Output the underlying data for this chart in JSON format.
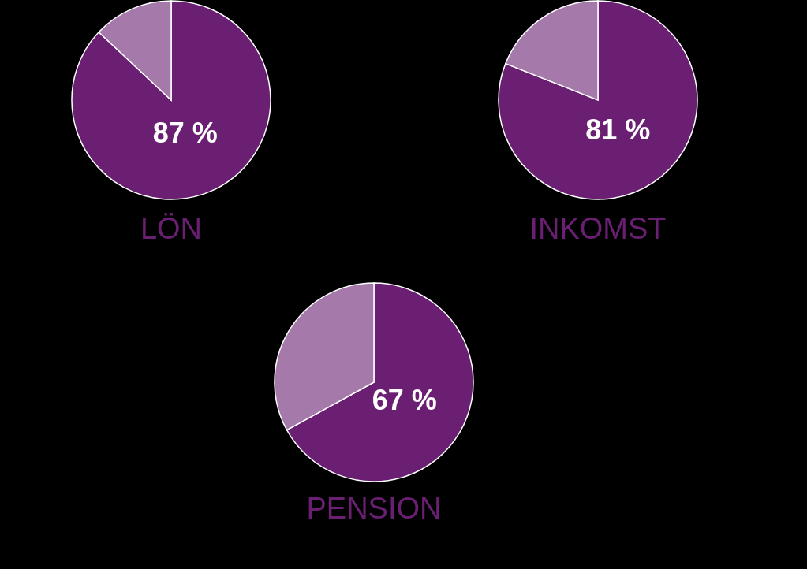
{
  "chart_data": [
    {
      "type": "pie",
      "title": "LÖN",
      "categories": [
        null,
        null
      ],
      "values": [
        87,
        13
      ],
      "colors": [
        "#6b1f73",
        "#a57aab"
      ],
      "value_labels": [
        "87 %",
        null
      ]
    },
    {
      "type": "pie",
      "title": "INKOMST",
      "categories": [
        null,
        null
      ],
      "values": [
        81,
        19
      ],
      "colors": [
        "#6b1f73",
        "#a57aab"
      ],
      "value_labels": [
        "81 %",
        null
      ]
    },
    {
      "type": "pie",
      "title": "PENSION",
      "categories": [
        null,
        null
      ],
      "values": [
        67,
        33
      ],
      "colors": [
        "#6b1f73",
        "#a57aab"
      ],
      "value_labels": [
        "67 %",
        null
      ]
    }
  ]
}
